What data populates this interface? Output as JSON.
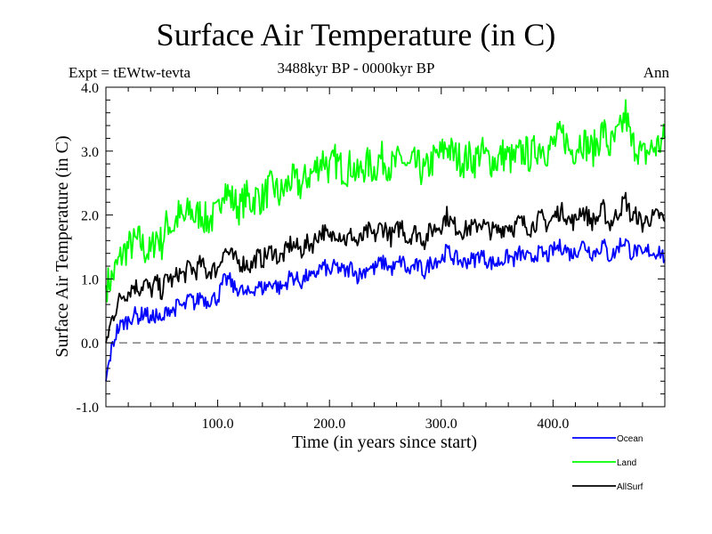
{
  "header": {
    "title": "Surface Air Temperature (in C)",
    "experiment": "Expt = tEWtw-tevta",
    "period": "3488kyr BP - 0000kyr BP",
    "season": "Ann"
  },
  "chart_data": {
    "type": "line",
    "title": "Surface Air Temperature (in C)",
    "subtitle": "3488kyr BP - 0000kyr BP",
    "xlabel": "Time (in years since start)",
    "ylabel": "Surface Air Temperature (in C)",
    "xlim": [
      0,
      500
    ],
    "ylim": [
      -1.0,
      4.0
    ],
    "xticks": [
      100,
      200,
      300,
      400
    ],
    "xtick_labels": [
      "100.0",
      "200.0",
      "300.0",
      "400.0"
    ],
    "x_minor_step": 20,
    "yticks": [
      -1.0,
      0.0,
      1.0,
      2.0,
      3.0,
      4.0
    ],
    "ytick_labels": [
      "-1.0",
      "0.0",
      "1.0",
      "2.0",
      "3.0",
      "4.0"
    ],
    "y_minor_step": 0.2,
    "reference_line": {
      "y": 0.0,
      "style": "dashed",
      "color": "#555555"
    },
    "grid": false,
    "legend_position": "bottom-right",
    "x": [
      0,
      5,
      10,
      15,
      20,
      25,
      30,
      35,
      40,
      45,
      50,
      55,
      60,
      65,
      70,
      75,
      80,
      85,
      90,
      95,
      100,
      105,
      110,
      115,
      120,
      125,
      130,
      135,
      140,
      145,
      150,
      155,
      160,
      165,
      170,
      175,
      180,
      185,
      190,
      195,
      200,
      205,
      210,
      215,
      220,
      225,
      230,
      235,
      240,
      245,
      250,
      255,
      260,
      265,
      270,
      275,
      280,
      285,
      290,
      295,
      300,
      305,
      310,
      315,
      320,
      325,
      330,
      335,
      340,
      345,
      350,
      355,
      360,
      365,
      370,
      375,
      380,
      385,
      390,
      395,
      400,
      405,
      410,
      415,
      420,
      425,
      430,
      435,
      440,
      445,
      450,
      455,
      460,
      465,
      470,
      475,
      480,
      485,
      490,
      495,
      500
    ],
    "series": [
      {
        "name": "Ocean",
        "color": "#0000ff",
        "values": [
          -0.6,
          -0.1,
          0.2,
          0.3,
          0.35,
          0.45,
          0.4,
          0.5,
          0.35,
          0.45,
          0.3,
          0.55,
          0.5,
          0.6,
          0.55,
          0.7,
          0.6,
          0.75,
          0.65,
          0.7,
          0.7,
          0.95,
          1.0,
          0.85,
          0.85,
          0.75,
          0.8,
          0.9,
          0.85,
          0.9,
          0.95,
          0.85,
          0.9,
          1.05,
          1.0,
          0.95,
          1.05,
          1.0,
          1.15,
          1.2,
          1.1,
          1.2,
          1.15,
          1.1,
          1.2,
          1.05,
          1.1,
          1.2,
          1.15,
          1.25,
          1.25,
          1.15,
          1.2,
          1.3,
          1.1,
          1.2,
          1.2,
          1.1,
          1.25,
          1.3,
          1.3,
          1.45,
          1.35,
          1.3,
          1.25,
          1.3,
          1.3,
          1.4,
          1.3,
          1.25,
          1.25,
          1.3,
          1.35,
          1.3,
          1.4,
          1.35,
          1.3,
          1.4,
          1.4,
          1.35,
          1.45,
          1.5,
          1.5,
          1.4,
          1.4,
          1.55,
          1.5,
          1.4,
          1.45,
          1.55,
          1.35,
          1.4,
          1.55,
          1.6,
          1.4,
          1.45,
          1.35,
          1.45,
          1.4,
          1.45,
          1.3
        ]
      },
      {
        "name": "Land",
        "color": "#00ff00",
        "values": [
          0.9,
          1.0,
          1.2,
          1.4,
          1.5,
          1.55,
          1.6,
          1.45,
          1.4,
          1.7,
          1.55,
          1.9,
          1.8,
          2.0,
          1.9,
          2.1,
          1.95,
          2.05,
          1.9,
          1.95,
          2.0,
          2.5,
          2.3,
          2.2,
          2.1,
          2.3,
          2.2,
          2.3,
          2.25,
          2.4,
          2.45,
          2.3,
          2.4,
          2.55,
          2.5,
          2.45,
          2.6,
          2.65,
          2.8,
          2.9,
          2.7,
          2.85,
          2.75,
          2.7,
          2.8,
          2.6,
          2.75,
          2.8,
          2.7,
          2.9,
          2.85,
          2.75,
          2.8,
          2.9,
          2.7,
          2.8,
          2.75,
          2.65,
          2.8,
          2.9,
          2.95,
          3.1,
          2.95,
          2.9,
          2.85,
          2.9,
          2.85,
          3.0,
          2.9,
          2.85,
          2.85,
          2.95,
          2.9,
          2.85,
          2.95,
          3.0,
          2.9,
          3.05,
          3.1,
          3.0,
          3.1,
          3.2,
          3.25,
          3.0,
          3.05,
          3.2,
          3.1,
          3.0,
          3.15,
          3.35,
          3.05,
          3.15,
          3.3,
          3.6,
          3.1,
          3.1,
          2.9,
          3.0,
          3.05,
          3.1,
          3.2
        ]
      },
      {
        "name": "AllSurf",
        "color": "#000000",
        "values": [
          0.0,
          0.35,
          0.6,
          0.75,
          0.8,
          0.9,
          0.85,
          0.95,
          0.8,
          0.95,
          0.8,
          1.05,
          0.95,
          1.1,
          1.05,
          1.2,
          1.1,
          1.25,
          1.1,
          1.15,
          1.15,
          1.45,
          1.4,
          1.3,
          1.25,
          1.25,
          1.2,
          1.35,
          1.3,
          1.4,
          1.45,
          1.3,
          1.4,
          1.55,
          1.5,
          1.45,
          1.55,
          1.55,
          1.7,
          1.75,
          1.6,
          1.75,
          1.7,
          1.6,
          1.7,
          1.55,
          1.65,
          1.75,
          1.65,
          1.8,
          1.8,
          1.65,
          1.75,
          1.85,
          1.6,
          1.75,
          1.7,
          1.6,
          1.75,
          1.8,
          1.85,
          2.0,
          1.85,
          1.8,
          1.75,
          1.8,
          1.8,
          1.9,
          1.8,
          1.75,
          1.75,
          1.8,
          1.85,
          1.8,
          1.9,
          1.85,
          1.8,
          1.9,
          1.95,
          1.85,
          1.95,
          2.05,
          2.05,
          1.9,
          1.9,
          2.1,
          2.0,
          1.9,
          1.95,
          2.1,
          1.85,
          1.95,
          2.1,
          2.25,
          1.95,
          2.0,
          1.85,
          1.95,
          1.95,
          2.0,
          1.9
        ]
      }
    ]
  }
}
